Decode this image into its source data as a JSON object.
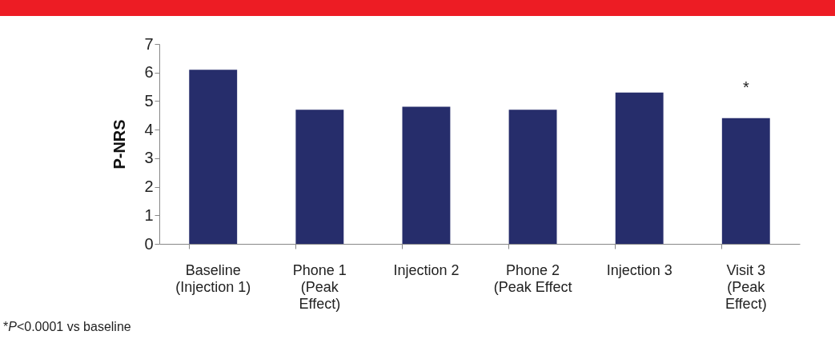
{
  "chart_data": {
    "type": "bar",
    "ylabel": "P-NRS",
    "categories": [
      "Baseline\n(Injection 1)",
      "Phone 1\n(Peak\nEffect)",
      "Injection 2",
      "Phone 2\n(Peak Effect",
      "Injection 3",
      "Visit 3\n(Peak\nEffect)"
    ],
    "values": [
      6.1,
      4.7,
      4.8,
      4.7,
      5.3,
      4.4
    ],
    "color": "#262d6b",
    "ylim": [
      0,
      7
    ],
    "yticks": [
      0,
      1,
      2,
      3,
      4,
      5,
      6,
      7
    ],
    "annotations": [
      {
        "text": "*",
        "x": "Visit 3\n(Peak\nEffect)",
        "y": 4.4
      },
      "*P<0.0001 vs baseline"
    ]
  }
}
